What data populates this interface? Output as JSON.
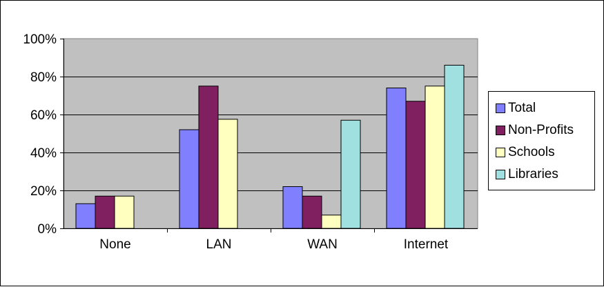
{
  "chart_data": {
    "type": "bar",
    "categories": [
      "None",
      "LAN",
      "WAN",
      "Internet"
    ],
    "series": [
      {
        "name": "Total",
        "color": "#8080FF",
        "values": [
          13,
          52,
          22,
          74
        ]
      },
      {
        "name": "Non-Profits",
        "color": "#802060",
        "values": [
          17,
          75,
          17,
          67
        ]
      },
      {
        "name": "Schools",
        "color": "#FFFFC0",
        "values": [
          17,
          57.5,
          7,
          75
        ]
      },
      {
        "name": "Libraries",
        "color": "#A0E0E0",
        "values": [
          null,
          null,
          57,
          86
        ]
      }
    ],
    "ylim": [
      0,
      100
    ],
    "y_ticks": [
      0,
      20,
      40,
      60,
      80,
      100
    ],
    "y_tick_labels": [
      "0%",
      "20%",
      "40%",
      "60%",
      "80%",
      "100%"
    ],
    "grid": true,
    "legend": "right",
    "plot_background": "#C0C0C0"
  }
}
